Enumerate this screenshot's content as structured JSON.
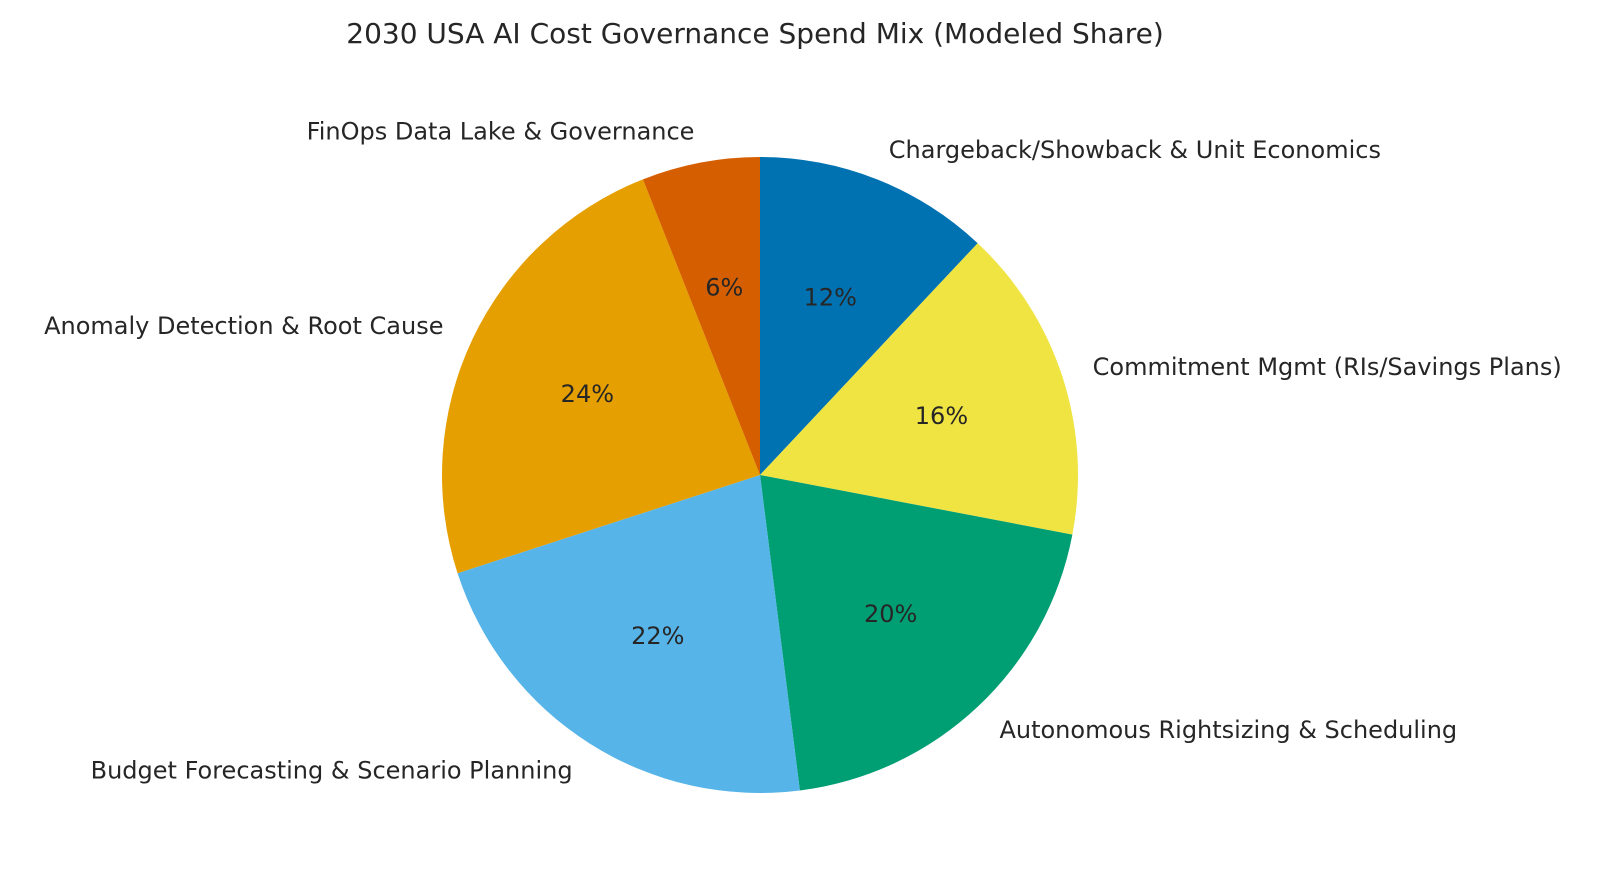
{
  "chart_data": {
    "type": "pie",
    "title": "2030 USA AI Cost Governance Spend Mix (Modeled Share)",
    "start_angle_deg": 90,
    "direction": "clockwise",
    "label_format": "{v}%",
    "slices": [
      {
        "label": "Chargeback/Showback & Unit Economics",
        "value": 12,
        "color": "#0072B2"
      },
      {
        "label": "Commitment Mgmt (RIs/Savings Plans)",
        "value": 16,
        "color": "#F0E442"
      },
      {
        "label": "Autonomous Rightsizing & Scheduling",
        "value": 20,
        "color": "#009E73"
      },
      {
        "label": "Budget Forecasting & Scenario Planning",
        "value": 22,
        "color": "#56B4E9"
      },
      {
        "label": "Anomaly Detection & Root Cause",
        "value": 24,
        "color": "#E69F00"
      },
      {
        "label": "FinOps Data Lake & Governance",
        "value": 6,
        "color": "#D55E00"
      }
    ],
    "legend": "none"
  }
}
